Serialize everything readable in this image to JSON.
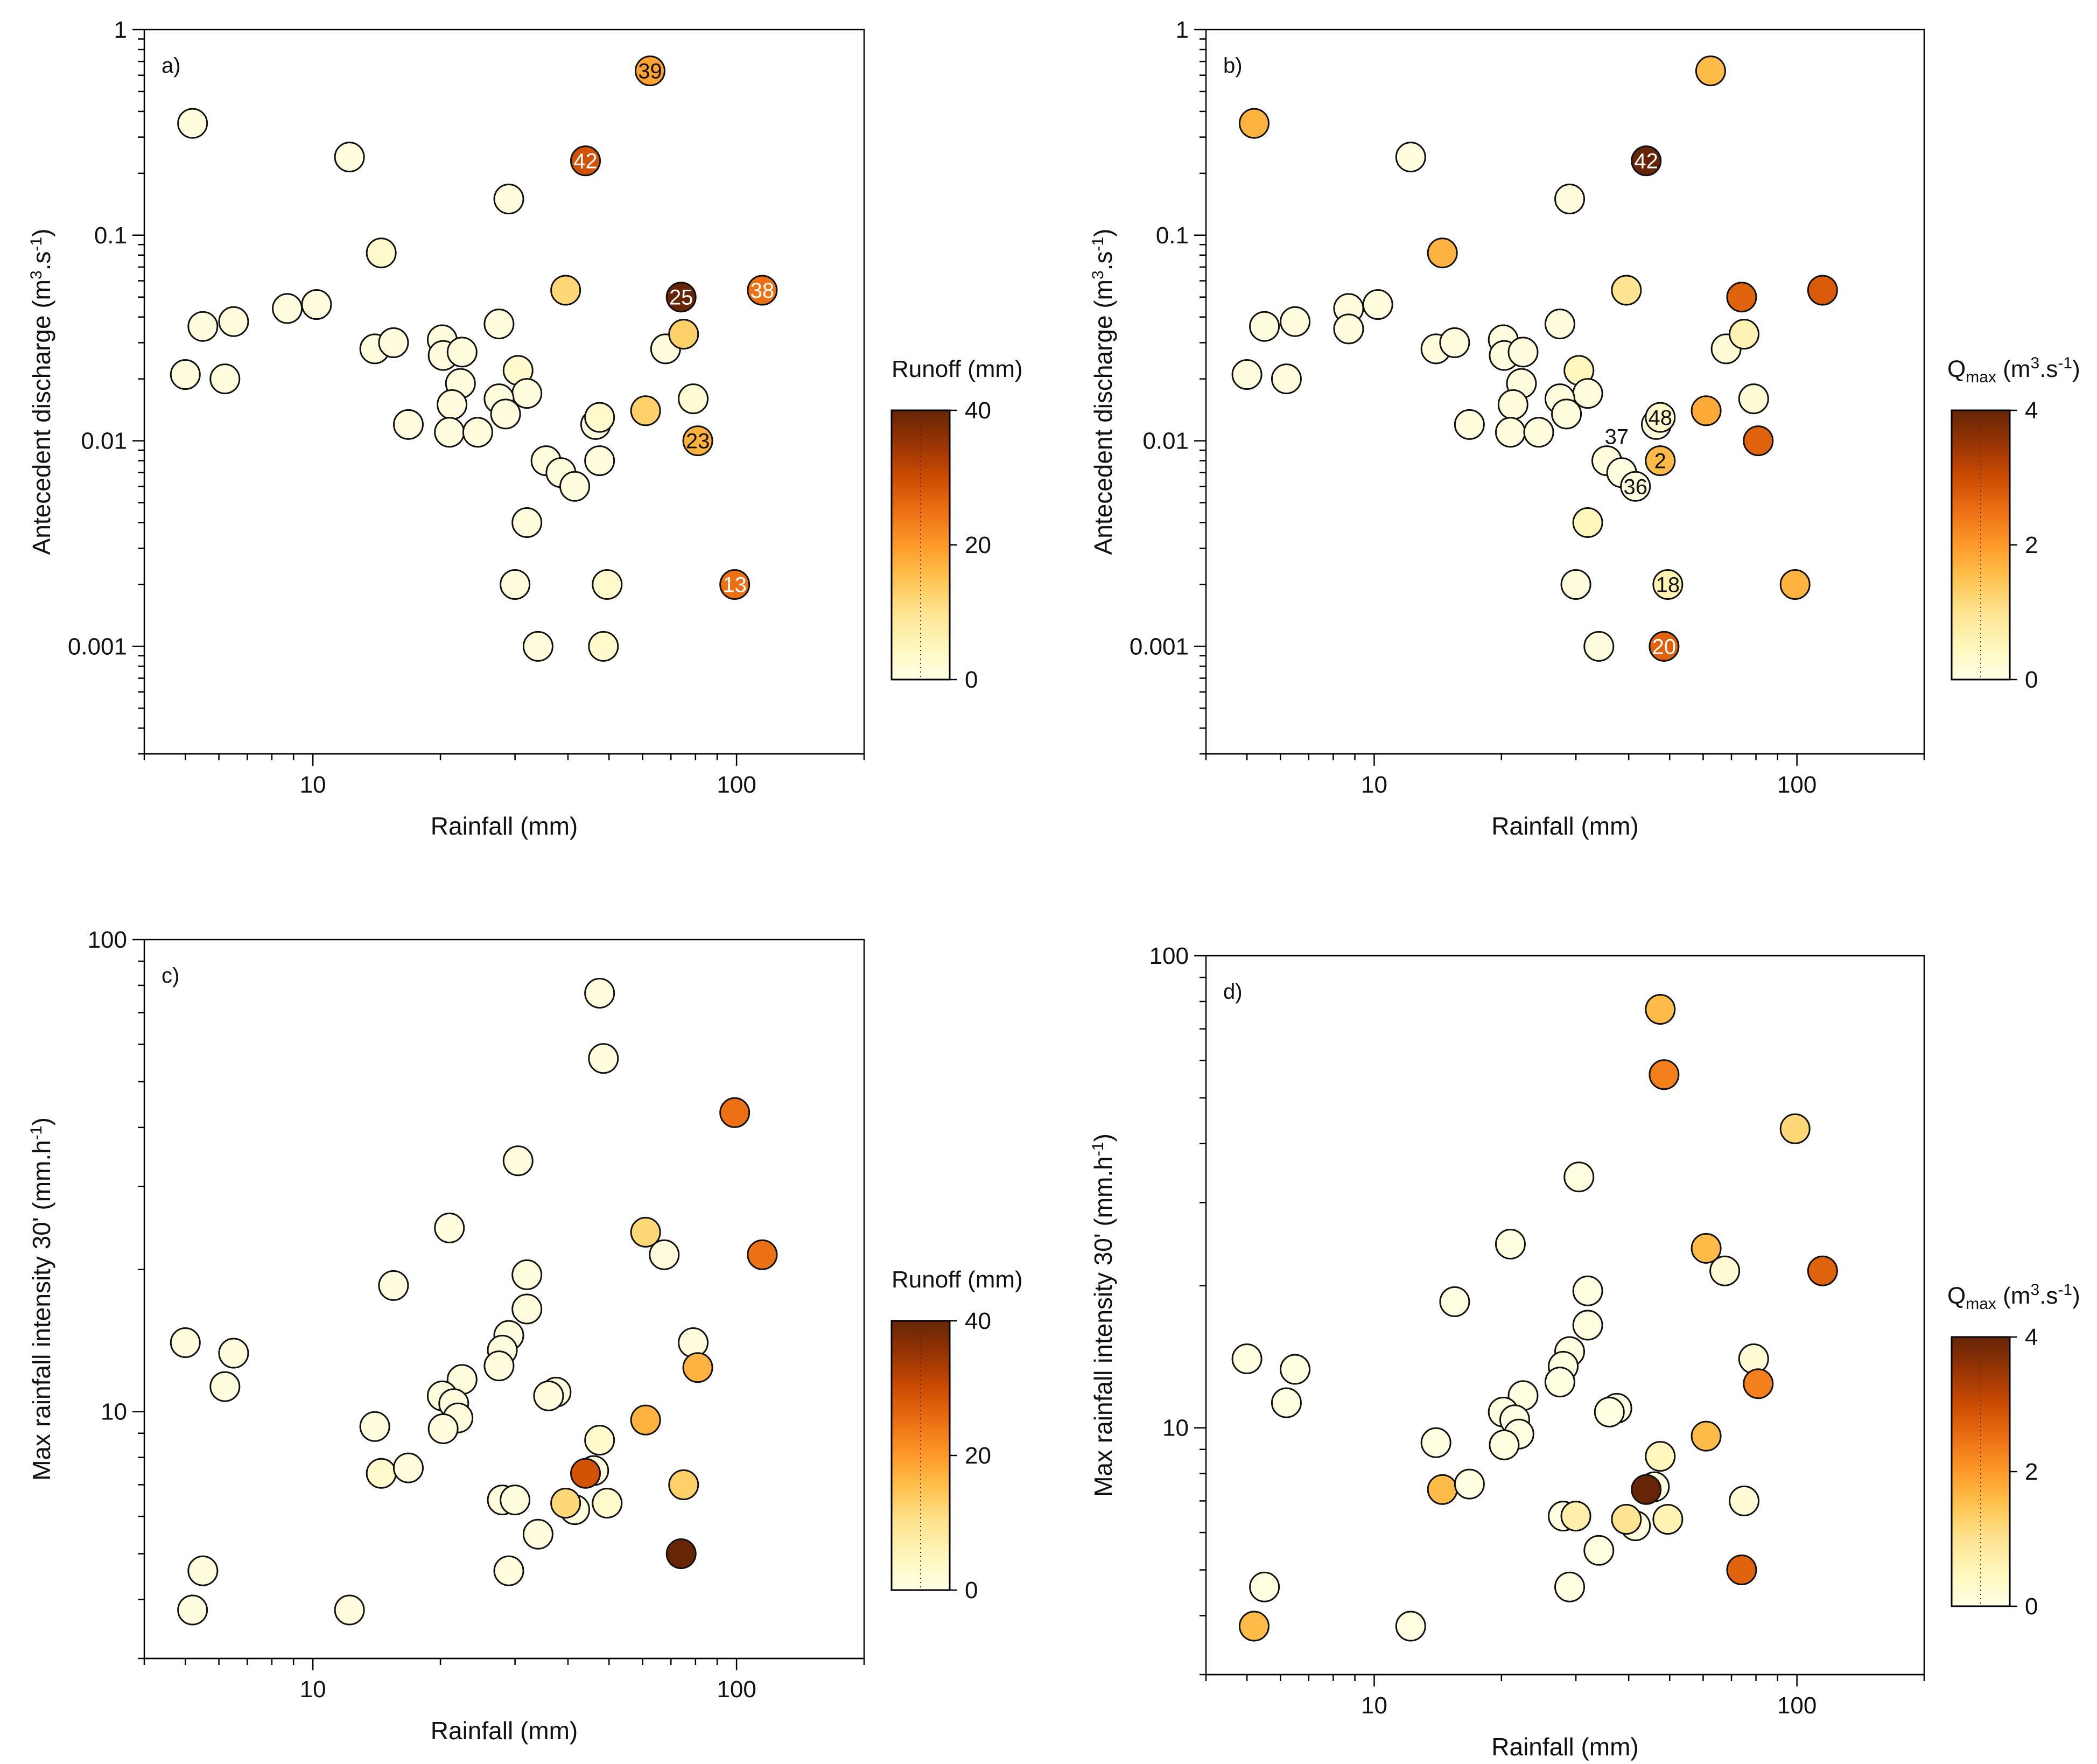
{
  "colormap": [
    "#ffffe5",
    "#fff7bc",
    "#fee391",
    "#fec44f",
    "#fe9929",
    "#ec7014",
    "#cc4c02",
    "#993404",
    "#662506"
  ],
  "colorbars": [
    {
      "title": "Runoff (mm)",
      "max": 40,
      "ticks": [
        "0",
        "20",
        "40"
      ]
    },
    {
      "title_prefix": "Q",
      "title_sub": "max",
      "title_suffix": " (m",
      "title_sup": "3",
      "title_end": ".s",
      "title_sup2": "-1",
      "title_close": ")",
      "max": 4,
      "ticks": [
        "0",
        "2",
        "4"
      ]
    }
  ],
  "chart_data": [
    {
      "panel": "a)",
      "type": "scatter",
      "xlabel": "Rainfall (mm)",
      "ylabel_main": "Antecedent discharge (m",
      "ylabel_sup": "3",
      "ylabel_mid": ".s",
      "ylabel_sup2": "-1",
      "ylabel_end": ")",
      "xscale": "log",
      "yscale": "log",
      "xlim": [
        4,
        200
      ],
      "ylim": [
        0.0003,
        1
      ],
      "xticks": [
        10,
        100
      ],
      "xticklabels": [
        "10",
        "100"
      ],
      "yticks": [
        0.001,
        0.01,
        0.1,
        1
      ],
      "yticklabels": [
        "0.001",
        "0.01",
        "0.1",
        "1"
      ],
      "color_by": "Runoff (mm)",
      "colorbar_index": 0,
      "points": [
        {
          "x": 5.2,
          "y": 0.35,
          "c": 1
        },
        {
          "x": 12.2,
          "y": 0.24,
          "c": 1
        },
        {
          "x": 29,
          "y": 0.15,
          "c": 1
        },
        {
          "x": 14.5,
          "y": 0.082,
          "c": 3
        },
        {
          "x": 8.7,
          "y": 0.044,
          "c": 1
        },
        {
          "x": 10.2,
          "y": 0.046,
          "c": 1
        },
        {
          "x": 5.5,
          "y": 0.036,
          "c": 1
        },
        {
          "x": 6.5,
          "y": 0.038,
          "c": 1
        },
        {
          "x": 5,
          "y": 0.021,
          "c": 1
        },
        {
          "x": 6.2,
          "y": 0.02,
          "c": 1
        },
        {
          "x": 14,
          "y": 0.028,
          "c": 1
        },
        {
          "x": 15.5,
          "y": 0.03,
          "c": 1
        },
        {
          "x": 20.2,
          "y": 0.031,
          "c": 1
        },
        {
          "x": 20.3,
          "y": 0.026,
          "c": 1
        },
        {
          "x": 22.5,
          "y": 0.027,
          "c": 1
        },
        {
          "x": 27.5,
          "y": 0.037,
          "c": 1
        },
        {
          "x": 22.3,
          "y": 0.019,
          "c": 1
        },
        {
          "x": 21.3,
          "y": 0.015,
          "c": 1
        },
        {
          "x": 30.5,
          "y": 0.022,
          "c": 3
        },
        {
          "x": 32,
          "y": 0.017,
          "c": 1
        },
        {
          "x": 27.5,
          "y": 0.016,
          "c": 1
        },
        {
          "x": 28.5,
          "y": 0.0135,
          "c": 1
        },
        {
          "x": 16.8,
          "y": 0.012,
          "c": 1
        },
        {
          "x": 21,
          "y": 0.011,
          "c": 1
        },
        {
          "x": 24.5,
          "y": 0.011,
          "c": 1
        },
        {
          "x": 35.5,
          "y": 0.008,
          "c": 1
        },
        {
          "x": 38.5,
          "y": 0.007,
          "c": 1
        },
        {
          "x": 41.5,
          "y": 0.006,
          "c": 1
        },
        {
          "x": 47.5,
          "y": 0.008,
          "c": 1
        },
        {
          "x": 46.5,
          "y": 0.012,
          "c": 1
        },
        {
          "x": 47.5,
          "y": 0.013,
          "c": 3
        },
        {
          "x": 32,
          "y": 0.004,
          "c": 1
        },
        {
          "x": 30,
          "y": 0.002,
          "c": 1
        },
        {
          "x": 49.5,
          "y": 0.002,
          "c": 3
        },
        {
          "x": 34,
          "y": 0.001,
          "c": 1
        },
        {
          "x": 48.5,
          "y": 0.001,
          "c": 3
        },
        {
          "x": 39.5,
          "y": 0.054,
          "c": 12
        },
        {
          "x": 68,
          "y": 0.028,
          "c": 1
        },
        {
          "x": 75,
          "y": 0.033,
          "c": 13
        },
        {
          "x": 61,
          "y": 0.014,
          "c": 13
        },
        {
          "x": 79,
          "y": 0.016,
          "c": 2
        },
        {
          "x": 62.5,
          "y": 0.63,
          "c": 19,
          "label": "39"
        },
        {
          "x": 44,
          "y": 0.23,
          "c": 29,
          "label": "42"
        },
        {
          "x": 74,
          "y": 0.05,
          "c": 40,
          "label": "25"
        },
        {
          "x": 115,
          "y": 0.054,
          "c": 25,
          "label": "38"
        },
        {
          "x": 81,
          "y": 0.01,
          "c": 17,
          "label": "23"
        },
        {
          "x": 99,
          "y": 0.002,
          "c": 25,
          "label": "13"
        }
      ]
    },
    {
      "panel": "b)",
      "type": "scatter",
      "xlabel": "Rainfall (mm)",
      "ylabel_main": "Antecedent discharge (m",
      "ylabel_sup": "3",
      "ylabel_mid": ".s",
      "ylabel_sup2": "-1",
      "ylabel_end": ")",
      "xscale": "log",
      "yscale": "log",
      "xlim": [
        4,
        200
      ],
      "ylim": [
        0.0003,
        1
      ],
      "xticks": [
        10,
        100
      ],
      "xticklabels": [
        "10",
        "100"
      ],
      "yticks": [
        0.001,
        0.01,
        0.1,
        1
      ],
      "yticklabels": [
        "0.001",
        "0.01",
        "0.1",
        "1"
      ],
      "color_by": "Qmax (m3.s-1)",
      "colorbar_index": 1,
      "points": [
        {
          "x": 5.2,
          "y": 0.35,
          "c": 1.7
        },
        {
          "x": 12.2,
          "y": 0.24,
          "c": 0.1
        },
        {
          "x": 29,
          "y": 0.15,
          "c": 0.1
        },
        {
          "x": 14.5,
          "y": 0.082,
          "c": 1.7
        },
        {
          "x": 8.7,
          "y": 0.044,
          "c": 0.1
        },
        {
          "x": 8.7,
          "y": 0.035,
          "c": 0.1
        },
        {
          "x": 10.2,
          "y": 0.046,
          "c": 0.1
        },
        {
          "x": 5.5,
          "y": 0.036,
          "c": 0.1
        },
        {
          "x": 6.5,
          "y": 0.038,
          "c": 0.1
        },
        {
          "x": 5,
          "y": 0.021,
          "c": 0.1
        },
        {
          "x": 6.2,
          "y": 0.02,
          "c": 0.1
        },
        {
          "x": 14,
          "y": 0.028,
          "c": 0.1
        },
        {
          "x": 15.5,
          "y": 0.03,
          "c": 0.1
        },
        {
          "x": 20.2,
          "y": 0.031,
          "c": 0.1
        },
        {
          "x": 20.3,
          "y": 0.026,
          "c": 0.1
        },
        {
          "x": 22.5,
          "y": 0.027,
          "c": 0.1
        },
        {
          "x": 27.5,
          "y": 0.037,
          "c": 0.1
        },
        {
          "x": 22.3,
          "y": 0.019,
          "c": 0.1
        },
        {
          "x": 21.3,
          "y": 0.015,
          "c": 0.1
        },
        {
          "x": 30.5,
          "y": 0.022,
          "c": 0.5
        },
        {
          "x": 32,
          "y": 0.017,
          "c": 0.1
        },
        {
          "x": 27.5,
          "y": 0.016,
          "c": 0.1
        },
        {
          "x": 28.5,
          "y": 0.0135,
          "c": 0.1
        },
        {
          "x": 16.8,
          "y": 0.012,
          "c": 0.1
        },
        {
          "x": 21,
          "y": 0.011,
          "c": 0.1
        },
        {
          "x": 24.5,
          "y": 0.011,
          "c": 0.1
        },
        {
          "x": 35.5,
          "y": 0.008,
          "c": 0.1
        },
        {
          "x": 32,
          "y": 0.004,
          "c": 0.5
        },
        {
          "x": 30,
          "y": 0.002,
          "c": 0.1
        },
        {
          "x": 34,
          "y": 0.001,
          "c": 0.1
        },
        {
          "x": 39.5,
          "y": 0.054,
          "c": 1.0
        },
        {
          "x": 68,
          "y": 0.028,
          "c": 0.2
        },
        {
          "x": 75,
          "y": 0.033,
          "c": 0.6
        },
        {
          "x": 61,
          "y": 0.014,
          "c": 1.8
        },
        {
          "x": 79,
          "y": 0.016,
          "c": 0.2
        },
        {
          "x": 62.5,
          "y": 0.63,
          "c": 1.6
        },
        {
          "x": 74,
          "y": 0.05,
          "c": 2.7
        },
        {
          "x": 115,
          "y": 0.054,
          "c": 2.8
        },
        {
          "x": 81,
          "y": 0.01,
          "c": 2.7
        },
        {
          "x": 99,
          "y": 0.002,
          "c": 1.7
        },
        {
          "x": 44,
          "y": 0.23,
          "c": 4.0,
          "label": "42"
        },
        {
          "x": 46.5,
          "y": 0.012,
          "c": 0.05
        },
        {
          "x": 47.5,
          "y": 0.013,
          "c": 0.3,
          "label": "48"
        },
        {
          "x": 47.5,
          "y": 0.008,
          "c": 1.6,
          "label": "2"
        },
        {
          "x": 38.5,
          "y": 0.007,
          "c": 0.05
        },
        {
          "x": 41.5,
          "y": 0.006,
          "c": 0.05,
          "label": "36"
        },
        {
          "x": 49.5,
          "y": 0.002,
          "c": 0.6,
          "label": "18"
        },
        {
          "x": 48.5,
          "y": 0.001,
          "c": 2.7,
          "label": "20"
        }
      ],
      "annotations": [
        {
          "text": "37",
          "x": 40,
          "y": 0.0105
        }
      ]
    },
    {
      "panel": "c)",
      "type": "scatter",
      "xlabel": "Rainfall (mm)",
      "ylabel_main": "Max rainfall intensity 30' (mm.h",
      "ylabel_sup": "-1",
      "ylabel_end": ")",
      "xscale": "log",
      "yscale": "log",
      "xlim": [
        4,
        200
      ],
      "ylim": [
        3,
        100
      ],
      "xticks": [
        10,
        100
      ],
      "xticklabels": [
        "10",
        "100"
      ],
      "yticks": [
        10,
        100
      ],
      "yticklabels": [
        "10",
        "100"
      ],
      "color_by": "Runoff (mm)",
      "colorbar_index": 0,
      "points": [
        {
          "x": 47.5,
          "y": 77,
          "c": 1
        },
        {
          "x": 48.5,
          "y": 56,
          "c": 1
        },
        {
          "x": 99,
          "y": 43,
          "c": 25
        },
        {
          "x": 30.5,
          "y": 34,
          "c": 1
        },
        {
          "x": 21,
          "y": 24.5,
          "c": 1
        },
        {
          "x": 61,
          "y": 24,
          "c": 12
        },
        {
          "x": 67.5,
          "y": 21.5,
          "c": 1
        },
        {
          "x": 115,
          "y": 21.5,
          "c": 25
        },
        {
          "x": 32,
          "y": 19.5,
          "c": 1
        },
        {
          "x": 15.5,
          "y": 18.5,
          "c": 1
        },
        {
          "x": 32,
          "y": 16.5,
          "c": 1
        },
        {
          "x": 29,
          "y": 14.5,
          "c": 1
        },
        {
          "x": 5,
          "y": 14,
          "c": 1
        },
        {
          "x": 79,
          "y": 14,
          "c": 1
        },
        {
          "x": 28,
          "y": 13.5,
          "c": 1
        },
        {
          "x": 6.5,
          "y": 13.3,
          "c": 1
        },
        {
          "x": 27.5,
          "y": 12.5,
          "c": 1
        },
        {
          "x": 81,
          "y": 12.4,
          "c": 17
        },
        {
          "x": 22.5,
          "y": 11.7,
          "c": 1
        },
        {
          "x": 6.2,
          "y": 11.3,
          "c": 1
        },
        {
          "x": 20.2,
          "y": 10.8,
          "c": 1
        },
        {
          "x": 37.5,
          "y": 11,
          "c": 1
        },
        {
          "x": 36,
          "y": 10.8,
          "c": 1
        },
        {
          "x": 21.5,
          "y": 10.4,
          "c": 1
        },
        {
          "x": 22,
          "y": 9.7,
          "c": 1
        },
        {
          "x": 61,
          "y": 9.6,
          "c": 17
        },
        {
          "x": 14,
          "y": 9.3,
          "c": 1
        },
        {
          "x": 20.3,
          "y": 9.2,
          "c": 1
        },
        {
          "x": 47.5,
          "y": 8.7,
          "c": 3
        },
        {
          "x": 14.5,
          "y": 7.4,
          "c": 3
        },
        {
          "x": 16.8,
          "y": 7.6,
          "c": 1
        },
        {
          "x": 46,
          "y": 7.5,
          "c": 1
        },
        {
          "x": 44,
          "y": 7.4,
          "c": 29
        },
        {
          "x": 75,
          "y": 7,
          "c": 13
        },
        {
          "x": 28,
          "y": 6.5,
          "c": 1
        },
        {
          "x": 30,
          "y": 6.5,
          "c": 1
        },
        {
          "x": 41.5,
          "y": 6.2,
          "c": 1
        },
        {
          "x": 39.5,
          "y": 6.4,
          "c": 12
        },
        {
          "x": 49.5,
          "y": 6.4,
          "c": 3
        },
        {
          "x": 34,
          "y": 5.5,
          "c": 1
        },
        {
          "x": 74,
          "y": 5,
          "c": 40
        },
        {
          "x": 5.5,
          "y": 4.6,
          "c": 1
        },
        {
          "x": 29,
          "y": 4.6,
          "c": 1
        },
        {
          "x": 5.2,
          "y": 3.8,
          "c": 1
        },
        {
          "x": 12.2,
          "y": 3.8,
          "c": 1
        }
      ]
    },
    {
      "panel": "d)",
      "type": "scatter",
      "xlabel": "Rainfall (mm)",
      "ylabel_main": "Max rainfall intensity 30' (mm.h",
      "ylabel_sup": "-1",
      "ylabel_end": ")",
      "xscale": "log",
      "yscale": "log",
      "xlim": [
        4,
        200
      ],
      "ylim": [
        3,
        100
      ],
      "xticks": [
        10,
        100
      ],
      "xticklabels": [
        "10",
        "100"
      ],
      "yticks": [
        10,
        100
      ],
      "yticklabels": [
        "10",
        "100"
      ],
      "color_by": "Qmax (m3.s-1)",
      "colorbar_index": 1,
      "points": [
        {
          "x": 47.5,
          "y": 77,
          "c": 1.6
        },
        {
          "x": 48.5,
          "y": 56,
          "c": 2.3
        },
        {
          "x": 99,
          "y": 43,
          "c": 1.2
        },
        {
          "x": 30.5,
          "y": 34,
          "c": 0.05
        },
        {
          "x": 21,
          "y": 24.5,
          "c": 0.05
        },
        {
          "x": 61,
          "y": 24,
          "c": 1.6
        },
        {
          "x": 67.5,
          "y": 21.5,
          "c": 0.2
        },
        {
          "x": 115,
          "y": 21.5,
          "c": 2.7
        },
        {
          "x": 32,
          "y": 19.5,
          "c": 0.05
        },
        {
          "x": 15.5,
          "y": 18.5,
          "c": 0.05
        },
        {
          "x": 32,
          "y": 16.5,
          "c": 0.05
        },
        {
          "x": 29,
          "y": 14.5,
          "c": 0.05
        },
        {
          "x": 5,
          "y": 14,
          "c": 0.05
        },
        {
          "x": 79,
          "y": 14,
          "c": 0.2
        },
        {
          "x": 28,
          "y": 13.5,
          "c": 0.05
        },
        {
          "x": 6.5,
          "y": 13.3,
          "c": 0.05
        },
        {
          "x": 27.5,
          "y": 12.5,
          "c": 0.05
        },
        {
          "x": 81,
          "y": 12.4,
          "c": 2.3
        },
        {
          "x": 22.5,
          "y": 11.7,
          "c": 0.05
        },
        {
          "x": 6.2,
          "y": 11.3,
          "c": 0.05
        },
        {
          "x": 20.2,
          "y": 10.8,
          "c": 0.05
        },
        {
          "x": 37.5,
          "y": 11,
          "c": 0.05
        },
        {
          "x": 36,
          "y": 10.8,
          "c": 0.05
        },
        {
          "x": 21.5,
          "y": 10.4,
          "c": 0.05
        },
        {
          "x": 22,
          "y": 9.7,
          "c": 0.05
        },
        {
          "x": 61,
          "y": 9.6,
          "c": 1.6
        },
        {
          "x": 14,
          "y": 9.3,
          "c": 0.05
        },
        {
          "x": 20.3,
          "y": 9.2,
          "c": 0.05
        },
        {
          "x": 47.5,
          "y": 8.7,
          "c": 0.5
        },
        {
          "x": 14.5,
          "y": 7.4,
          "c": 1.6
        },
        {
          "x": 16.8,
          "y": 7.6,
          "c": 0.05
        },
        {
          "x": 46,
          "y": 7.5,
          "c": 0.05
        },
        {
          "x": 44,
          "y": 7.4,
          "c": 4.0
        },
        {
          "x": 75,
          "y": 7,
          "c": 0.2
        },
        {
          "x": 28,
          "y": 6.5,
          "c": 0.05
        },
        {
          "x": 30,
          "y": 6.5,
          "c": 0.7
        },
        {
          "x": 41.5,
          "y": 6.2,
          "c": 0.05
        },
        {
          "x": 39.5,
          "y": 6.4,
          "c": 1.0
        },
        {
          "x": 49.5,
          "y": 6.4,
          "c": 0.6
        },
        {
          "x": 34,
          "y": 5.5,
          "c": 0.05
        },
        {
          "x": 74,
          "y": 5,
          "c": 2.7
        },
        {
          "x": 5.5,
          "y": 4.6,
          "c": 0.05
        },
        {
          "x": 29,
          "y": 4.6,
          "c": 0.05
        },
        {
          "x": 5.2,
          "y": 3.8,
          "c": 1.6
        },
        {
          "x": 12.2,
          "y": 3.8,
          "c": 0.05
        }
      ]
    }
  ]
}
